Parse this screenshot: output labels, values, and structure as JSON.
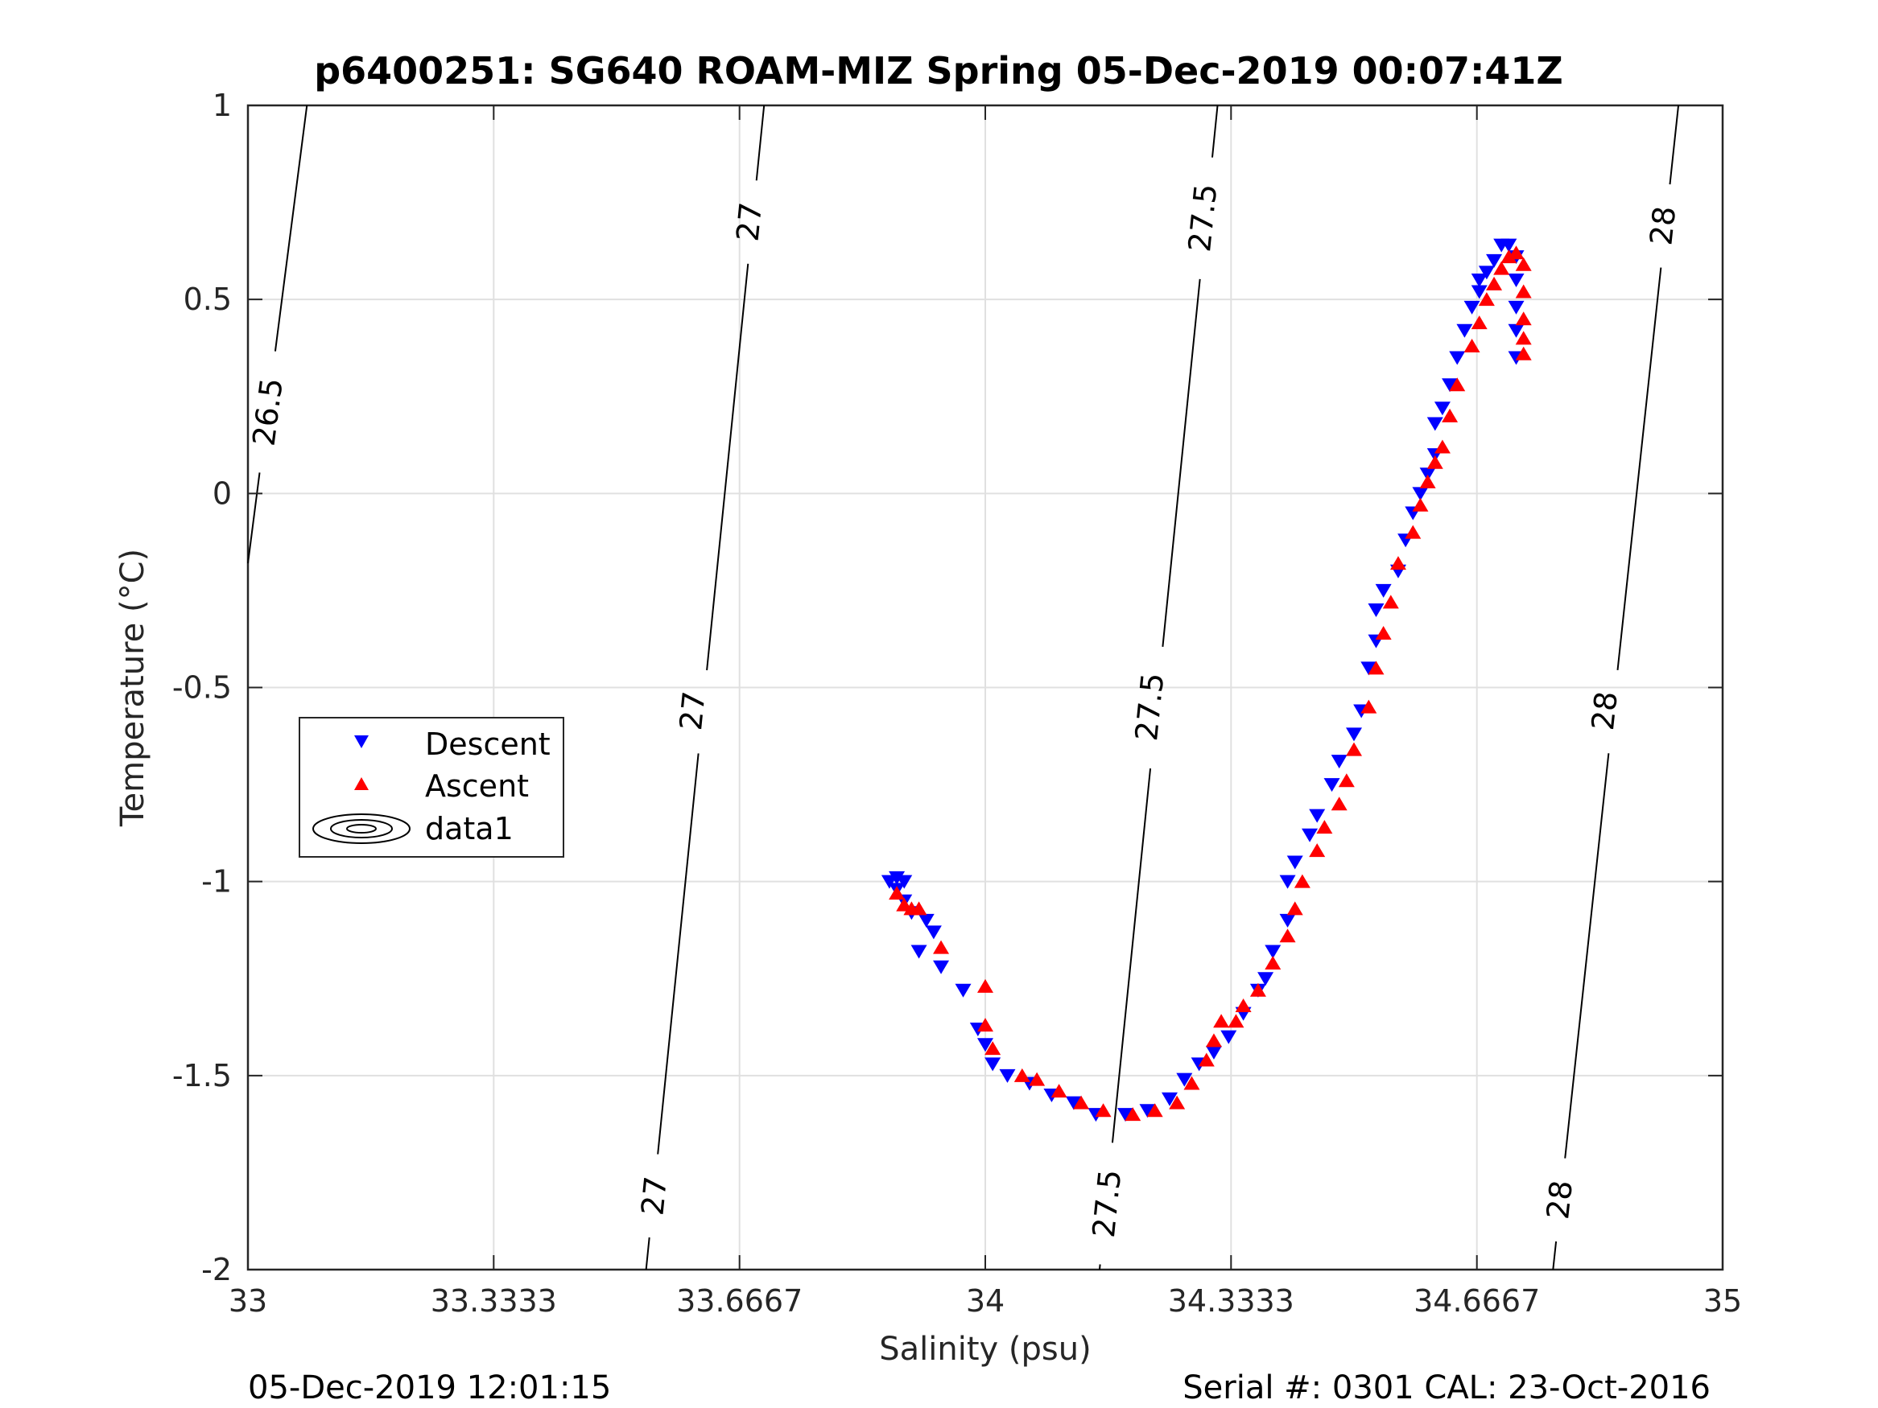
{
  "footer": {
    "left": "05-Dec-2019 12:01:15",
    "right": "Serial #: 0301  CAL: 23-Oct-2016"
  },
  "colors": {
    "descent": "#0000ff",
    "ascent": "#ff0000",
    "contour": "#000000",
    "grid": "#e0e0e0"
  },
  "chart_data": {
    "type": "scatter",
    "title": "p6400251: SG640 ROAM-MIZ Spring 05-Dec-2019 00:07:41Z",
    "xlabel": "Salinity (psu)",
    "ylabel": "Temperature (°C)",
    "xlim": [
      33,
      35
    ],
    "ylim": [
      -2,
      1
    ],
    "xticks": [
      33,
      33.3333,
      33.6667,
      34,
      34.3333,
      34.6667,
      35
    ],
    "xtick_labels": [
      "33",
      "33.3333",
      "33.6667",
      "34",
      "34.3333",
      "34.6667",
      "35"
    ],
    "yticks": [
      -2,
      -1.5,
      -1,
      -0.5,
      0,
      0.5,
      1
    ],
    "ytick_labels": [
      "-2",
      "-1.5",
      "-1",
      "-0.5",
      "0",
      "0.5",
      "1"
    ],
    "grid": true,
    "legend": {
      "position": "left",
      "entries": [
        "Descent",
        "Ascent",
        "data1"
      ]
    },
    "series": [
      {
        "name": "Descent",
        "marker": "triangle-down",
        "points": [
          [
            33.87,
            -1.0
          ],
          [
            33.88,
            -0.99
          ],
          [
            33.89,
            -1.0
          ],
          [
            33.88,
            -1.02
          ],
          [
            33.89,
            -1.05
          ],
          [
            33.9,
            -1.08
          ],
          [
            33.92,
            -1.1
          ],
          [
            33.93,
            -1.13
          ],
          [
            33.91,
            -1.18
          ],
          [
            33.94,
            -1.22
          ],
          [
            33.97,
            -1.28
          ],
          [
            33.99,
            -1.38
          ],
          [
            34.0,
            -1.42
          ],
          [
            34.01,
            -1.47
          ],
          [
            34.03,
            -1.5
          ],
          [
            34.06,
            -1.52
          ],
          [
            34.09,
            -1.55
          ],
          [
            34.12,
            -1.57
          ],
          [
            34.15,
            -1.6
          ],
          [
            34.19,
            -1.6
          ],
          [
            34.22,
            -1.59
          ],
          [
            34.25,
            -1.56
          ],
          [
            34.27,
            -1.51
          ],
          [
            34.29,
            -1.47
          ],
          [
            34.31,
            -1.44
          ],
          [
            34.33,
            -1.4
          ],
          [
            34.35,
            -1.34
          ],
          [
            34.37,
            -1.28
          ],
          [
            34.38,
            -1.25
          ],
          [
            34.39,
            -1.18
          ],
          [
            34.41,
            -1.1
          ],
          [
            34.41,
            -1.0
          ],
          [
            34.42,
            -0.95
          ],
          [
            34.44,
            -0.88
          ],
          [
            34.45,
            -0.83
          ],
          [
            34.47,
            -0.75
          ],
          [
            34.48,
            -0.69
          ],
          [
            34.5,
            -0.62
          ],
          [
            34.51,
            -0.56
          ],
          [
            34.52,
            -0.45
          ],
          [
            34.53,
            -0.38
          ],
          [
            34.53,
            -0.3
          ],
          [
            34.54,
            -0.25
          ],
          [
            34.56,
            -0.2
          ],
          [
            34.57,
            -0.12
          ],
          [
            34.58,
            -0.05
          ],
          [
            34.59,
            0.0
          ],
          [
            34.6,
            0.05
          ],
          [
            34.61,
            0.1
          ],
          [
            34.61,
            0.18
          ],
          [
            34.62,
            0.22
          ],
          [
            34.63,
            0.28
          ],
          [
            34.64,
            0.35
          ],
          [
            34.65,
            0.42
          ],
          [
            34.66,
            0.48
          ],
          [
            34.67,
            0.52
          ],
          [
            34.67,
            0.55
          ],
          [
            34.68,
            0.57
          ],
          [
            34.69,
            0.6
          ],
          [
            34.7,
            0.64
          ],
          [
            34.71,
            0.64
          ],
          [
            34.72,
            0.61
          ],
          [
            34.72,
            0.55
          ],
          [
            34.72,
            0.48
          ],
          [
            34.72,
            0.42
          ],
          [
            34.72,
            0.35
          ]
        ]
      },
      {
        "name": "Ascent",
        "marker": "triangle-up",
        "points": [
          [
            33.88,
            -1.03
          ],
          [
            33.89,
            -1.06
          ],
          [
            33.9,
            -1.07
          ],
          [
            33.91,
            -1.07
          ],
          [
            33.94,
            -1.17
          ],
          [
            34.0,
            -1.27
          ],
          [
            34.0,
            -1.37
          ],
          [
            34.01,
            -1.43
          ],
          [
            34.05,
            -1.5
          ],
          [
            34.07,
            -1.51
          ],
          [
            34.1,
            -1.54
          ],
          [
            34.13,
            -1.57
          ],
          [
            34.16,
            -1.59
          ],
          [
            34.2,
            -1.6
          ],
          [
            34.23,
            -1.59
          ],
          [
            34.26,
            -1.57
          ],
          [
            34.28,
            -1.52
          ],
          [
            34.3,
            -1.46
          ],
          [
            34.31,
            -1.41
          ],
          [
            34.32,
            -1.36
          ],
          [
            34.34,
            -1.36
          ],
          [
            34.35,
            -1.32
          ],
          [
            34.37,
            -1.28
          ],
          [
            34.39,
            -1.21
          ],
          [
            34.41,
            -1.14
          ],
          [
            34.42,
            -1.07
          ],
          [
            34.43,
            -1.0
          ],
          [
            34.45,
            -0.92
          ],
          [
            34.46,
            -0.86
          ],
          [
            34.48,
            -0.8
          ],
          [
            34.49,
            -0.74
          ],
          [
            34.5,
            -0.66
          ],
          [
            34.52,
            -0.55
          ],
          [
            34.53,
            -0.45
          ],
          [
            34.54,
            -0.36
          ],
          [
            34.55,
            -0.28
          ],
          [
            34.56,
            -0.18
          ],
          [
            34.58,
            -0.1
          ],
          [
            34.59,
            -0.03
          ],
          [
            34.6,
            0.03
          ],
          [
            34.61,
            0.08
          ],
          [
            34.62,
            0.12
          ],
          [
            34.63,
            0.2
          ],
          [
            34.64,
            0.28
          ],
          [
            34.66,
            0.38
          ],
          [
            34.67,
            0.44
          ],
          [
            34.68,
            0.5
          ],
          [
            34.69,
            0.54
          ],
          [
            34.7,
            0.58
          ],
          [
            34.71,
            0.61
          ],
          [
            34.72,
            0.62
          ],
          [
            34.73,
            0.59
          ],
          [
            34.73,
            0.52
          ],
          [
            34.73,
            0.45
          ],
          [
            34.73,
            0.4
          ],
          [
            34.73,
            0.36
          ]
        ]
      }
    ],
    "contours": [
      {
        "label": "26.5",
        "line": [
          [
            33.0,
            -0.18
          ],
          [
            33.08,
            1.0
          ]
        ],
        "label_positions": [
          [
            33.027,
            0.21
          ]
        ]
      },
      {
        "label": "27",
        "line": [
          [
            33.54,
            -2.0
          ],
          [
            33.7,
            1.0
          ]
        ],
        "label_positions": [
          [
            33.551,
            -1.81
          ],
          [
            33.603,
            -0.56
          ],
          [
            33.68,
            0.7
          ]
        ]
      },
      {
        "label": "27.5",
        "line": [
          [
            34.155,
            -2.0
          ],
          [
            34.315,
            1.0
          ]
        ],
        "label_positions": [
          [
            34.165,
            -1.83
          ],
          [
            34.223,
            -0.55
          ],
          [
            34.295,
            0.71
          ]
        ]
      },
      {
        "label": "28",
        "line": [
          [
            34.77,
            -2.0
          ],
          [
            34.94,
            1.0
          ]
        ],
        "label_positions": [
          [
            34.779,
            -1.82
          ],
          [
            34.84,
            -0.56
          ],
          [
            34.919,
            0.69
          ]
        ]
      }
    ]
  }
}
